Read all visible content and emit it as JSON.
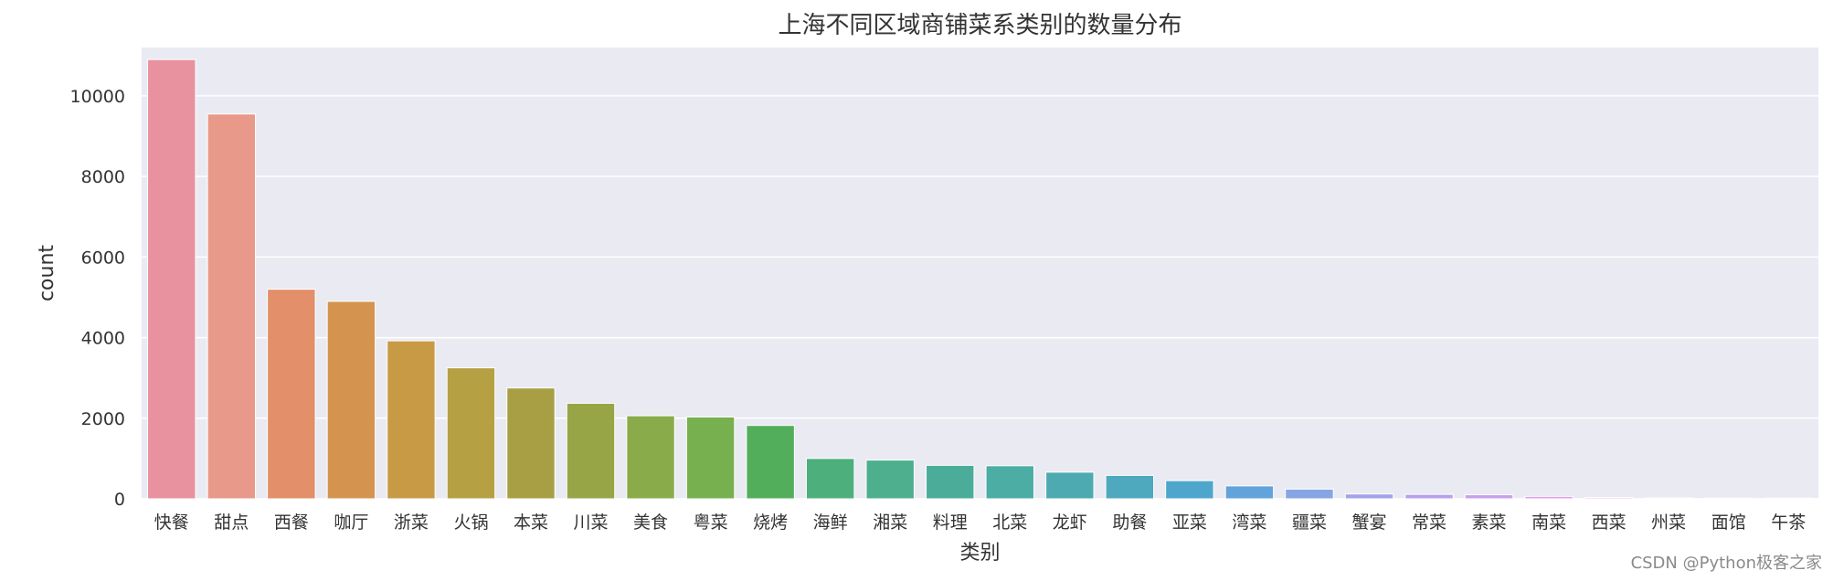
{
  "colors": {
    "plot_background": "#eaeaf2",
    "grid": "#ffffff",
    "text": "#333333",
    "bars": [
      "#e8919f",
      "#e8998a",
      "#e28f6a",
      "#d49450",
      "#c89a45",
      "#b6a044",
      "#a89f45",
      "#97a546",
      "#8aab4a",
      "#77b04f",
      "#52ae5a",
      "#4daf7b",
      "#4daf8e",
      "#4cac9a",
      "#4bada4",
      "#4caab0",
      "#4ea8be",
      "#4fa6cd",
      "#62a3db",
      "#87a5e2",
      "#a4a3e8",
      "#b8a1ea",
      "#caa0ea",
      "#dba0e6",
      "#e69fdd",
      "#ea9fd2",
      "#ea9dc7",
      "#e99bba"
    ]
  },
  "chart_data": {
    "type": "bar",
    "title": "上海不同区域商铺菜系类别的数量分布",
    "xlabel": "类别",
    "ylabel": "count",
    "ylim": [
      0,
      11200
    ],
    "yticks": [
      0,
      2000,
      4000,
      6000,
      8000,
      10000
    ],
    "grid": true,
    "categories": [
      "快餐",
      "甜点",
      "西餐",
      "咖厅",
      "浙菜",
      "火锅",
      "本菜",
      "川菜",
      "美食",
      "粤菜",
      "烧烤",
      "海鲜",
      "湘菜",
      "料理",
      "北菜",
      "龙虾",
      "助餐",
      "亚菜",
      "湾菜",
      "疆菜",
      "蟹宴",
      "常菜",
      "素菜",
      "南菜",
      "西菜",
      "州菜",
      "面馆",
      "午茶"
    ],
    "values": [
      10900,
      9550,
      5200,
      4900,
      3920,
      3250,
      2750,
      2370,
      2060,
      2030,
      1820,
      1000,
      960,
      830,
      820,
      660,
      580,
      450,
      320,
      240,
      120,
      110,
      100,
      60,
      30,
      20,
      10,
      5
    ]
  },
  "watermark": "CSDN @Python极客之家"
}
